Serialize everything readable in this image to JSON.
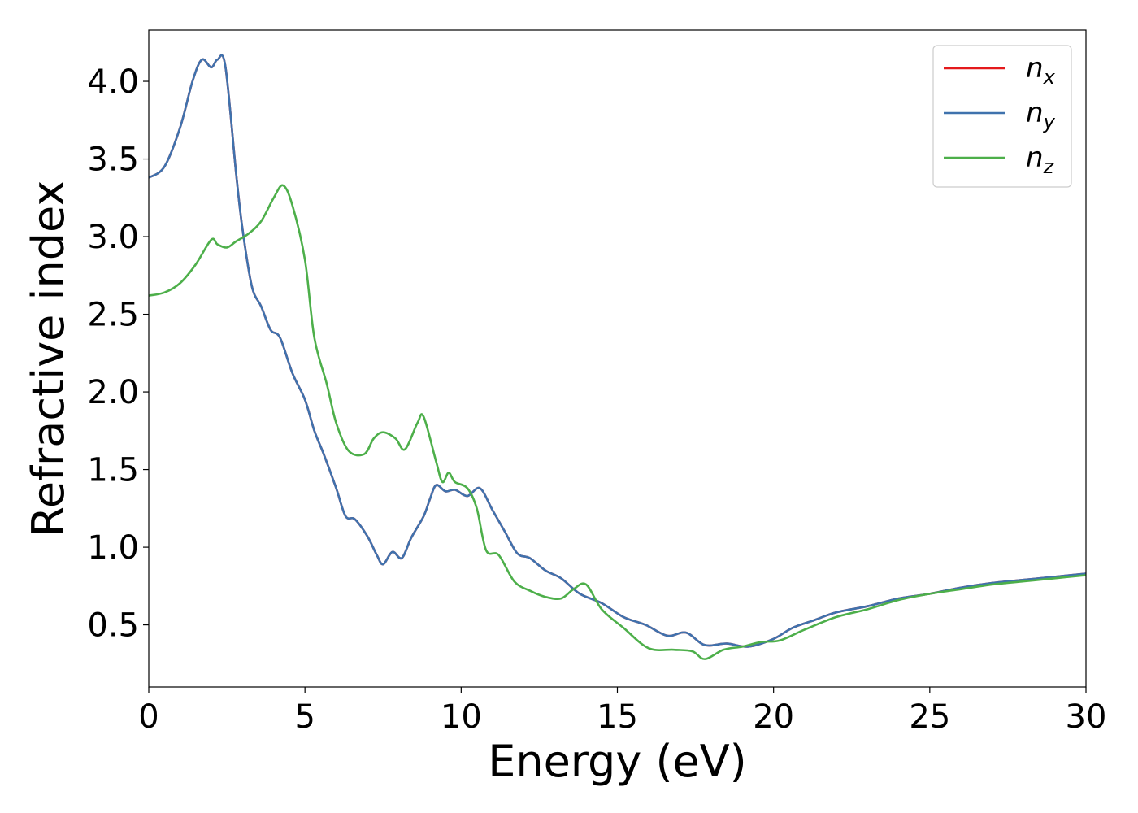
{
  "chart_data": {
    "type": "line",
    "xlabel": "Energy (eV)",
    "ylabel": "Refractive index",
    "xlim": [
      0,
      30
    ],
    "ylim": [
      0.1,
      4.33
    ],
    "xticks": [
      "0",
      "5",
      "10",
      "15",
      "20",
      "25",
      "30"
    ],
    "yticks": [
      "0.5",
      "1.0",
      "1.5",
      "2.0",
      "2.5",
      "3.0",
      "3.5",
      "4.0"
    ],
    "grid": false,
    "legend_position": "top-right",
    "series": [
      {
        "name": "n_x",
        "label_base": "n",
        "label_sub": "x",
        "color": "#e41a1c",
        "x": [
          0,
          0.5,
          1.0,
          1.4,
          1.7,
          2.0,
          2.2,
          2.45,
          2.8,
          3.0,
          3.3,
          3.6,
          3.9,
          4.2,
          4.6,
          5.0,
          5.3,
          5.6,
          6.0,
          6.3,
          6.6,
          7.0,
          7.3,
          7.5,
          7.8,
          8.1,
          8.4,
          8.8,
          9.0,
          9.2,
          9.5,
          9.8,
          10.2,
          10.6,
          11.0,
          11.4,
          11.8,
          12.2,
          12.7,
          13.2,
          13.8,
          14.5,
          15.2,
          15.9,
          16.6,
          17.2,
          17.8,
          18.5,
          19.2,
          20.0,
          20.6,
          21.3,
          22.0,
          23.0,
          24.0,
          25.0,
          26.0,
          27.0,
          28.0,
          29.0,
          30.0
        ],
        "values": [
          3.38,
          3.45,
          3.7,
          4.0,
          4.14,
          4.09,
          4.14,
          4.1,
          3.4,
          3.05,
          2.68,
          2.55,
          2.4,
          2.35,
          2.12,
          1.95,
          1.75,
          1.6,
          1.38,
          1.2,
          1.18,
          1.07,
          0.95,
          0.89,
          0.97,
          0.93,
          1.06,
          1.2,
          1.31,
          1.4,
          1.36,
          1.37,
          1.33,
          1.38,
          1.24,
          1.1,
          0.96,
          0.93,
          0.85,
          0.8,
          0.7,
          0.64,
          0.55,
          0.5,
          0.43,
          0.45,
          0.37,
          0.38,
          0.36,
          0.41,
          0.48,
          0.53,
          0.58,
          0.62,
          0.67,
          0.7,
          0.74,
          0.77,
          0.79,
          0.81,
          0.83
        ]
      },
      {
        "name": "n_y",
        "label_base": "n",
        "label_sub": "y",
        "color": "#3f72ad",
        "x": [
          0,
          0.5,
          1.0,
          1.4,
          1.7,
          2.0,
          2.2,
          2.45,
          2.8,
          3.0,
          3.3,
          3.6,
          3.9,
          4.2,
          4.6,
          5.0,
          5.3,
          5.6,
          6.0,
          6.3,
          6.6,
          7.0,
          7.3,
          7.5,
          7.8,
          8.1,
          8.4,
          8.8,
          9.0,
          9.2,
          9.5,
          9.8,
          10.2,
          10.6,
          11.0,
          11.4,
          11.8,
          12.2,
          12.7,
          13.2,
          13.8,
          14.5,
          15.2,
          15.9,
          16.6,
          17.2,
          17.8,
          18.5,
          19.2,
          20.0,
          20.6,
          21.3,
          22.0,
          23.0,
          24.0,
          25.0,
          26.0,
          27.0,
          28.0,
          29.0,
          30.0
        ],
        "values": [
          3.38,
          3.45,
          3.7,
          4.0,
          4.14,
          4.09,
          4.14,
          4.1,
          3.4,
          3.05,
          2.68,
          2.55,
          2.4,
          2.35,
          2.12,
          1.95,
          1.75,
          1.6,
          1.38,
          1.2,
          1.18,
          1.07,
          0.95,
          0.89,
          0.97,
          0.93,
          1.06,
          1.2,
          1.31,
          1.4,
          1.36,
          1.37,
          1.33,
          1.38,
          1.24,
          1.1,
          0.96,
          0.93,
          0.85,
          0.8,
          0.7,
          0.64,
          0.55,
          0.5,
          0.43,
          0.45,
          0.37,
          0.38,
          0.36,
          0.41,
          0.48,
          0.53,
          0.58,
          0.62,
          0.67,
          0.7,
          0.74,
          0.77,
          0.79,
          0.81,
          0.83
        ]
      },
      {
        "name": "n_z",
        "label_base": "n",
        "label_sub": "z",
        "color": "#4daf4a",
        "x": [
          0,
          0.5,
          1.0,
          1.5,
          2.0,
          2.2,
          2.5,
          2.8,
          3.2,
          3.6,
          4.0,
          4.3,
          4.6,
          5.0,
          5.3,
          5.7,
          6.0,
          6.4,
          6.9,
          7.2,
          7.5,
          7.9,
          8.2,
          8.6,
          8.8,
          9.2,
          9.4,
          9.6,
          9.8,
          10.2,
          10.5,
          10.8,
          11.2,
          11.7,
          12.2,
          12.7,
          13.2,
          13.6,
          14.0,
          14.5,
          15.2,
          16.0,
          16.8,
          17.4,
          17.8,
          18.4,
          19.0,
          19.6,
          20.2,
          21.0,
          22.0,
          23.0,
          24.0,
          25.0,
          26.0,
          27.0,
          28.0,
          29.0,
          30.0
        ],
        "values": [
          2.62,
          2.64,
          2.7,
          2.82,
          2.98,
          2.95,
          2.93,
          2.97,
          3.02,
          3.1,
          3.25,
          3.33,
          3.2,
          2.85,
          2.35,
          2.05,
          1.8,
          1.62,
          1.6,
          1.7,
          1.74,
          1.7,
          1.63,
          1.8,
          1.84,
          1.55,
          1.42,
          1.48,
          1.42,
          1.38,
          1.25,
          0.98,
          0.95,
          0.78,
          0.72,
          0.68,
          0.67,
          0.73,
          0.76,
          0.6,
          0.48,
          0.35,
          0.34,
          0.33,
          0.28,
          0.34,
          0.36,
          0.39,
          0.4,
          0.47,
          0.55,
          0.6,
          0.66,
          0.7,
          0.73,
          0.76,
          0.78,
          0.8,
          0.82
        ]
      }
    ]
  }
}
